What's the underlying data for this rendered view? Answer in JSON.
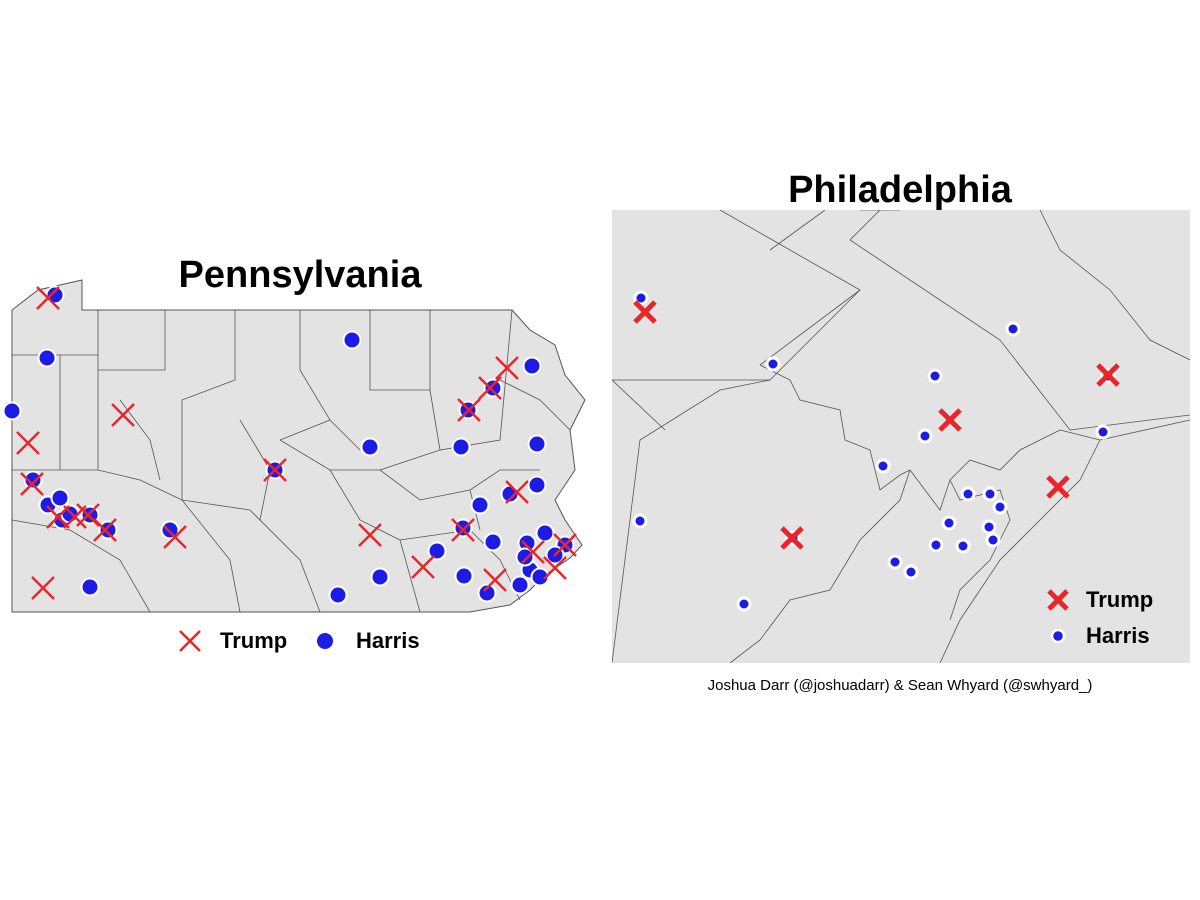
{
  "left_map": {
    "title": "Pennsylvania",
    "legend": [
      "Trump",
      "Harris"
    ]
  },
  "right_map": {
    "title": "Philadelphia",
    "legend": [
      "Trump",
      "Harris"
    ]
  },
  "credit": "Joshua Darr (@joshuadarr) & Sean Whyard (@swhyard_)"
}
